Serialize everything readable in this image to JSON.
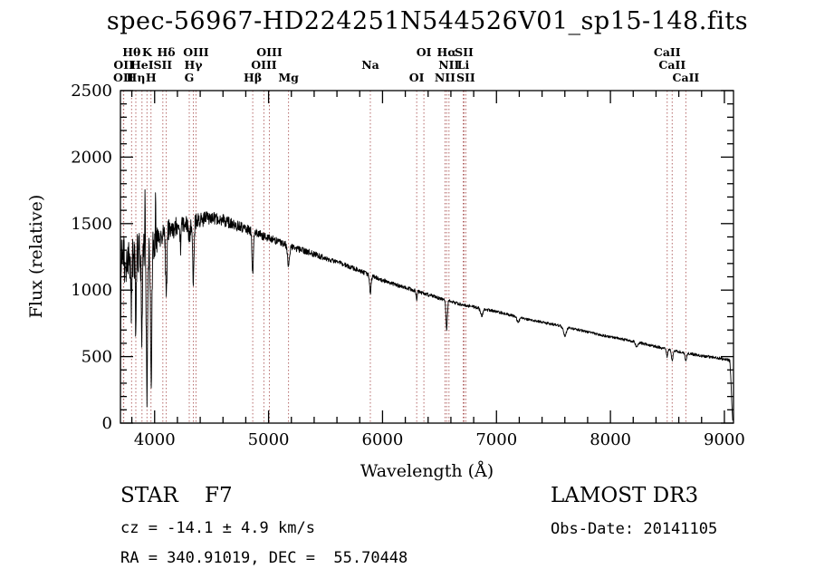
{
  "colors": {
    "background": "#ffffff",
    "spectrum": "#000000",
    "line_marker": "#b56a6a",
    "text": "#000000"
  },
  "annotations": {
    "classification": "STAR    F7",
    "survey": "LAMOST DR3",
    "velocity": "cz = -14.1 ± 4.9 km/s",
    "obs_date": "Obs-Date: 20141105",
    "coordinates": "RA = 340.91019, DEC =  55.70448"
  },
  "chart_data": {
    "type": "line",
    "title": "spec-56967-HD224251N544526V01_sp15-148.fits",
    "xlabel": "Wavelength (Å)",
    "ylabel": "Flux (relative)",
    "xlim": [
      3700,
      9080
    ],
    "ylim": [
      0,
      2500
    ],
    "x_ticks": [
      4000,
      5000,
      6000,
      7000,
      8000,
      9000
    ],
    "y_ticks": [
      0,
      500,
      1000,
      1500,
      2000,
      2500
    ],
    "grid": false,
    "legend": false,
    "sample_step_angstrom": 2.5,
    "spectral_lines": [
      {
        "label": "OII",
        "wavelength": 3726,
        "row": 3
      },
      {
        "label": "OII",
        "wavelength": 3729,
        "row": 2
      },
      {
        "label": "Hθ",
        "wavelength": 3798,
        "row": 1
      },
      {
        "label": "Hη",
        "wavelength": 3835,
        "row": 3
      },
      {
        "label": "HeI",
        "wavelength": 3889,
        "row": 2
      },
      {
        "label": "K",
        "wavelength": 3933,
        "row": 1
      },
      {
        "label": "H",
        "wavelength": 3968,
        "row": 3
      },
      {
        "label": "SII",
        "wavelength": 4072,
        "row": 2
      },
      {
        "label": "Hδ",
        "wavelength": 4102,
        "row": 1
      },
      {
        "label": "G",
        "wavelength": 4304,
        "row": 3
      },
      {
        "label": "Hγ",
        "wavelength": 4340,
        "row": 2
      },
      {
        "label": "OIII",
        "wavelength": 4363,
        "row": 1
      },
      {
        "label": "Hβ",
        "wavelength": 4861,
        "row": 3
      },
      {
        "label": "OIII",
        "wavelength": 4959,
        "row": 2
      },
      {
        "label": "OIII",
        "wavelength": 5007,
        "row": 1
      },
      {
        "label": "Mg",
        "wavelength": 5175,
        "row": 3
      },
      {
        "label": "Na",
        "wavelength": 5893,
        "row": 2
      },
      {
        "label": "OI",
        "wavelength": 6300,
        "row": 3
      },
      {
        "label": "OI",
        "wavelength": 6363,
        "row": 1
      },
      {
        "label": "NII",
        "wavelength": 6548,
        "row": 3
      },
      {
        "label": "Hα",
        "wavelength": 6563,
        "row": 1
      },
      {
        "label": "NII",
        "wavelength": 6583,
        "row": 2
      },
      {
        "label": "Li",
        "wavelength": 6708,
        "row": 2
      },
      {
        "label": "SII",
        "wavelength": 6716,
        "row": 1
      },
      {
        "label": "SII",
        "wavelength": 6731,
        "row": 3
      },
      {
        "label": "CaII",
        "wavelength": 8498,
        "row": 1
      },
      {
        "label": "CaII",
        "wavelength": 8542,
        "row": 2
      },
      {
        "label": "CaII",
        "wavelength": 8662,
        "row": 3
      }
    ],
    "continuum": [
      [
        3700,
        0
      ],
      [
        3703,
        850
      ],
      [
        3707,
        1280
      ],
      [
        3716,
        1140
      ],
      [
        3727,
        1230
      ],
      [
        3738,
        1080
      ],
      [
        3752,
        1210
      ],
      [
        3766,
        1140
      ],
      [
        3781,
        1230
      ],
      [
        3800,
        1255
      ],
      [
        3822,
        1215
      ],
      [
        3846,
        1275
      ],
      [
        3872,
        1255
      ],
      [
        3900,
        1330
      ],
      [
        3932,
        1320
      ],
      [
        3962,
        1330
      ],
      [
        3992,
        1360
      ],
      [
        4022,
        1400
      ],
      [
        4062,
        1430
      ],
      [
        4122,
        1450
      ],
      [
        4202,
        1480
      ],
      [
        4302,
        1505
      ],
      [
        4402,
        1525
      ],
      [
        4502,
        1550
      ],
      [
        4602,
        1525
      ],
      [
        4702,
        1490
      ],
      [
        4802,
        1460
      ],
      [
        4902,
        1425
      ],
      [
        5002,
        1390
      ],
      [
        5102,
        1360
      ],
      [
        5202,
        1325
      ],
      [
        5352,
        1285
      ],
      [
        5502,
        1240
      ],
      [
        5652,
        1195
      ],
      [
        5802,
        1145
      ],
      [
        5952,
        1090
      ],
      [
        6102,
        1045
      ],
      [
        6252,
        1005
      ],
      [
        6402,
        965
      ],
      [
        6552,
        925
      ],
      [
        6702,
        890
      ],
      [
        6852,
        865
      ],
      [
        7002,
        838
      ],
      [
        7152,
        805
      ],
      [
        7302,
        775
      ],
      [
        7452,
        750
      ],
      [
        7602,
        725
      ],
      [
        7752,
        695
      ],
      [
        7902,
        665
      ],
      [
        8052,
        640
      ],
      [
        8202,
        615
      ],
      [
        8352,
        585
      ],
      [
        8502,
        555
      ],
      [
        8652,
        530
      ],
      [
        8802,
        505
      ],
      [
        8952,
        488
      ],
      [
        9030,
        478
      ],
      [
        9048,
        468
      ],
      [
        9058,
        300
      ],
      [
        9072,
        20
      ]
    ],
    "absorption_lines": [
      [
        3798,
        420,
        4
      ],
      [
        3835,
        560,
        4
      ],
      [
        3889,
        640,
        5
      ],
      [
        3933,
        1080,
        6
      ],
      [
        3970,
        980,
        6
      ],
      [
        4102,
        500,
        6
      ],
      [
        4227,
        160,
        4
      ],
      [
        4304,
        140,
        7
      ],
      [
        4340,
        430,
        6
      ],
      [
        4861,
        330,
        6
      ],
      [
        5175,
        150,
        9
      ],
      [
        5893,
        130,
        7
      ],
      [
        6300,
        60,
        5
      ],
      [
        6563,
        220,
        6
      ],
      [
        6870,
        55,
        11
      ],
      [
        7190,
        35,
        11
      ],
      [
        7600,
        70,
        13
      ],
      [
        8230,
        35,
        11
      ],
      [
        8498,
        55,
        6
      ],
      [
        8542,
        75,
        7
      ],
      [
        8662,
        65,
        7
      ]
    ],
    "emission_spikes": [
      [
        3731,
        200,
        2
      ],
      [
        3770,
        280,
        2
      ],
      [
        3847,
        260,
        2
      ],
      [
        3916,
        430,
        2
      ],
      [
        4008,
        290,
        2
      ]
    ],
    "noise_profile": [
      [
        3700,
        190
      ],
      [
        3850,
        170
      ],
      [
        3950,
        150
      ],
      [
        4050,
        110
      ],
      [
        4200,
        75
      ],
      [
        4400,
        55
      ],
      [
        4700,
        40
      ],
      [
        5000,
        30
      ],
      [
        5300,
        24
      ],
      [
        5700,
        18
      ],
      [
        6100,
        15
      ],
      [
        6500,
        13
      ],
      [
        7000,
        11
      ],
      [
        7500,
        10
      ],
      [
        8000,
        10
      ],
      [
        8600,
        11
      ],
      [
        9080,
        12
      ]
    ]
  }
}
